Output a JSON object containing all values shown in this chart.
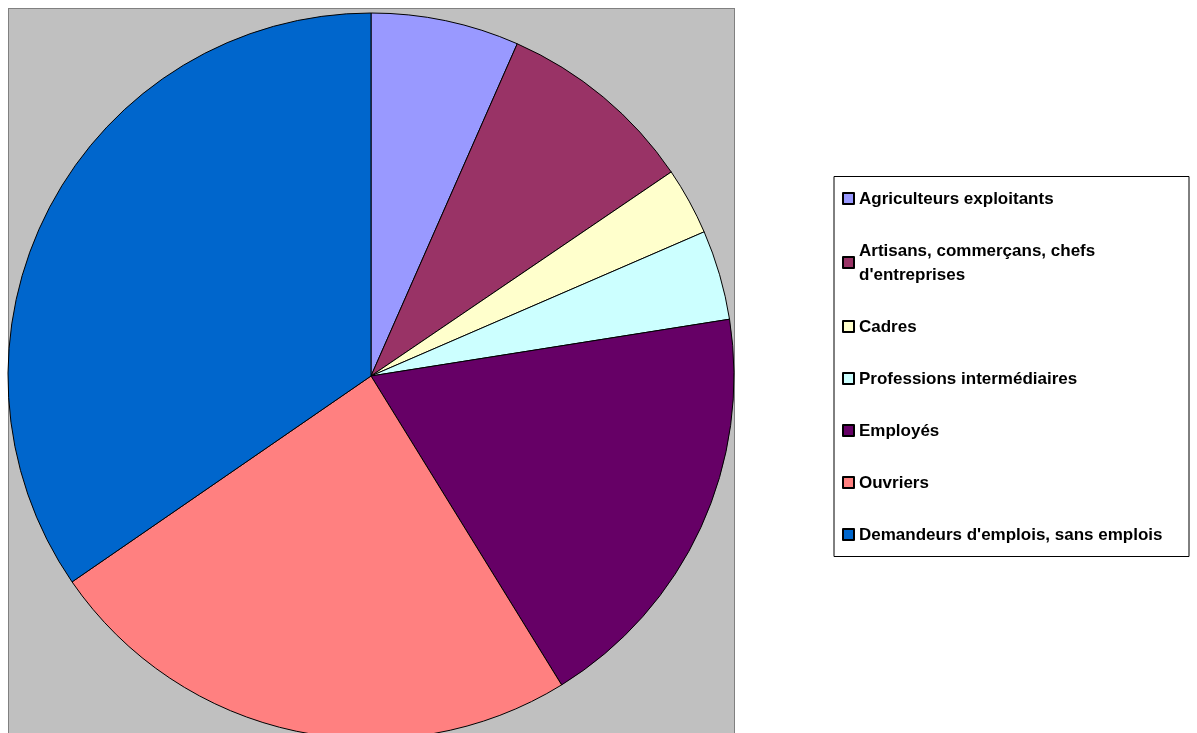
{
  "chart_data": {
    "type": "pie",
    "categories": [
      "Agriculteurs exploitants",
      "Artisans, commerçans, chefs d'entreprises",
      "Cadres",
      "Professions intermédiaires",
      "Employés",
      "Ouvriers",
      "Demandeurs d'emplois, sans emplois"
    ],
    "values": [
      6.6,
      8.9,
      3.0,
      4.0,
      18.7,
      24.2,
      34.6
    ],
    "colors": [
      "#9999ff",
      "#993366",
      "#ffffcc",
      "#ccffff",
      "#660066",
      "#ff8080",
      "#0066cc"
    ],
    "legend": "right"
  }
}
